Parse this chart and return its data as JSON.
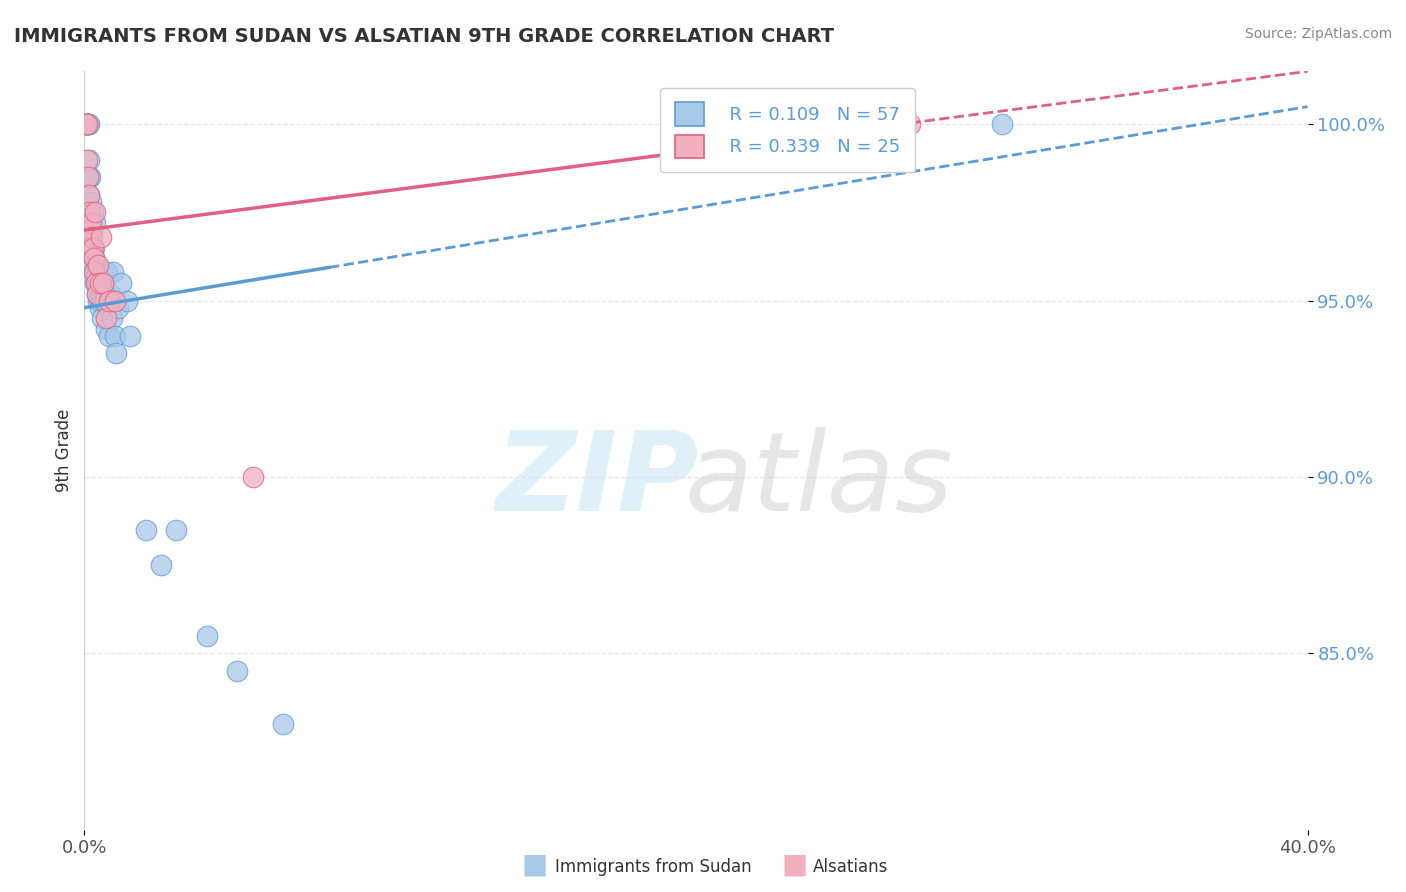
{
  "title": "IMMIGRANTS FROM SUDAN VS ALSATIAN 9TH GRADE CORRELATION CHART",
  "source": "Source: ZipAtlas.com",
  "ylabel": "9th Grade",
  "x_min": 0.0,
  "x_max": 40.0,
  "y_min": 80.0,
  "y_max": 101.5,
  "y_ticks": [
    85.0,
    90.0,
    95.0,
    100.0
  ],
  "x_ticks": [
    0.0,
    40.0
  ],
  "R_sudan": 0.109,
  "N_sudan": 57,
  "R_alsatian": 0.339,
  "N_alsatian": 25,
  "sudan_scatter_x": [
    0.05,
    0.08,
    0.1,
    0.1,
    0.12,
    0.12,
    0.14,
    0.15,
    0.15,
    0.15,
    0.18,
    0.18,
    0.2,
    0.2,
    0.22,
    0.22,
    0.25,
    0.25,
    0.28,
    0.28,
    0.3,
    0.3,
    0.32,
    0.35,
    0.35,
    0.38,
    0.4,
    0.4,
    0.42,
    0.45,
    0.48,
    0.5,
    0.52,
    0.55,
    0.58,
    0.6,
    0.65,
    0.68,
    0.7,
    0.75,
    0.8,
    0.85,
    0.9,
    0.95,
    1.0,
    1.05,
    1.1,
    1.2,
    1.4,
    1.5,
    2.0,
    2.5,
    3.0,
    4.0,
    5.0,
    6.5,
    30.0
  ],
  "sudan_scatter_y": [
    100.0,
    100.0,
    100.0,
    100.0,
    100.0,
    100.0,
    100.0,
    98.5,
    99.0,
    98.0,
    98.5,
    97.0,
    97.2,
    96.5,
    97.8,
    96.8,
    96.5,
    97.0,
    96.0,
    97.5,
    96.2,
    95.8,
    96.5,
    95.5,
    97.2,
    95.8,
    96.0,
    95.5,
    95.2,
    95.0,
    95.5,
    95.0,
    94.8,
    95.2,
    94.5,
    95.0,
    95.5,
    95.0,
    94.2,
    95.8,
    94.0,
    95.2,
    94.5,
    95.8,
    94.0,
    93.5,
    94.8,
    95.5,
    95.0,
    94.0,
    88.5,
    87.5,
    88.5,
    85.5,
    84.5,
    83.0,
    100.0
  ],
  "alsatian_scatter_x": [
    0.05,
    0.08,
    0.1,
    0.12,
    0.14,
    0.15,
    0.18,
    0.2,
    0.22,
    0.25,
    0.28,
    0.3,
    0.32,
    0.35,
    0.38,
    0.42,
    0.45,
    0.5,
    0.55,
    0.6,
    0.7,
    0.8,
    1.0,
    5.5,
    27.0
  ],
  "alsatian_scatter_y": [
    100.0,
    100.0,
    99.0,
    98.5,
    98.0,
    97.5,
    97.0,
    96.5,
    97.2,
    96.8,
    96.5,
    96.2,
    95.8,
    97.5,
    95.5,
    95.2,
    96.0,
    95.5,
    96.8,
    95.5,
    94.5,
    95.0,
    95.0,
    90.0,
    100.0
  ],
  "blue_color": "#5b9bd5",
  "pink_color": "#e06080",
  "blue_fill": "#a8c8e8",
  "pink_fill": "#f0b0c0",
  "grid_color": "#e0e0e0"
}
